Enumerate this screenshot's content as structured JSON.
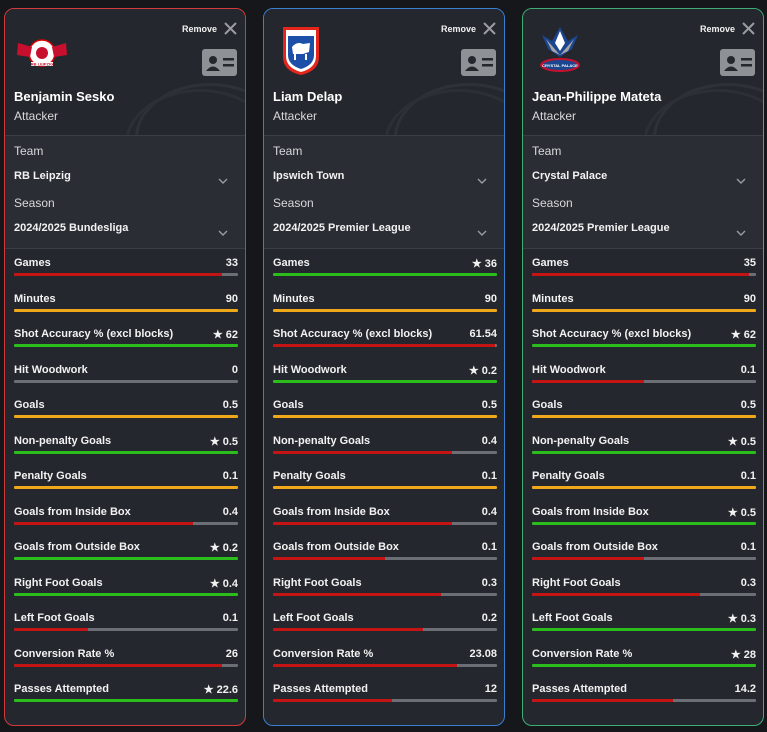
{
  "ui": {
    "remove_label": "Remove",
    "team_label": "Team",
    "season_label": "Season"
  },
  "colors": {
    "green": "#2bbd1c",
    "orange": "#f0a81a",
    "red": "#c41414",
    "gray": "#6b6e74"
  },
  "players": [
    {
      "name": "Benjamin Sesko",
      "role": "Attacker",
      "team": "RB Leipzig",
      "season": "2024/2025 Bundesliga",
      "border_color": "#d23b3b",
      "logo": "rb-leipzig-logo",
      "stats": [
        {
          "name": "Games",
          "value": "33",
          "star": false,
          "fill": 0.93,
          "color": "red"
        },
        {
          "name": "Minutes",
          "value": "90",
          "star": false,
          "fill": 1.0,
          "color": "orange"
        },
        {
          "name": "Shot Accuracy % (excl blocks)",
          "value": "62",
          "star": true,
          "fill": 1.0,
          "color": "green"
        },
        {
          "name": "Hit Woodwork",
          "value": "0",
          "star": false,
          "fill": 0.0,
          "color": "gray"
        },
        {
          "name": "Goals",
          "value": "0.5",
          "star": false,
          "fill": 1.0,
          "color": "orange"
        },
        {
          "name": "Non-penalty Goals",
          "value": "0.5",
          "star": true,
          "fill": 1.0,
          "color": "green"
        },
        {
          "name": "Penalty Goals",
          "value": "0.1",
          "star": false,
          "fill": 1.0,
          "color": "orange"
        },
        {
          "name": "Goals from Inside Box",
          "value": "0.4",
          "star": false,
          "fill": 0.8,
          "color": "red"
        },
        {
          "name": "Goals from Outside Box",
          "value": "0.2",
          "star": true,
          "fill": 1.0,
          "color": "green"
        },
        {
          "name": "Right Foot Goals",
          "value": "0.4",
          "star": true,
          "fill": 1.0,
          "color": "green"
        },
        {
          "name": "Left Foot Goals",
          "value": "0.1",
          "star": false,
          "fill": 0.33,
          "color": "red"
        },
        {
          "name": "Conversion Rate %",
          "value": "26",
          "star": false,
          "fill": 0.93,
          "color": "red"
        },
        {
          "name": "Passes Attempted",
          "value": "22.6",
          "star": true,
          "fill": 1.0,
          "color": "green"
        }
      ]
    },
    {
      "name": "Liam Delap",
      "role": "Attacker",
      "team": "Ipswich Town",
      "season": "2024/2025 Premier League",
      "border_color": "#3b7fd2",
      "logo": "ipswich-town-logo",
      "stats": [
        {
          "name": "Games",
          "value": "36",
          "star": true,
          "fill": 1.0,
          "color": "green"
        },
        {
          "name": "Minutes",
          "value": "90",
          "star": false,
          "fill": 1.0,
          "color": "orange"
        },
        {
          "name": "Shot Accuracy % (excl blocks)",
          "value": "61.54",
          "star": false,
          "fill": 0.99,
          "color": "red"
        },
        {
          "name": "Hit Woodwork",
          "value": "0.2",
          "star": true,
          "fill": 1.0,
          "color": "green"
        },
        {
          "name": "Goals",
          "value": "0.5",
          "star": false,
          "fill": 1.0,
          "color": "orange"
        },
        {
          "name": "Non-penalty Goals",
          "value": "0.4",
          "star": false,
          "fill": 0.8,
          "color": "red"
        },
        {
          "name": "Penalty Goals",
          "value": "0.1",
          "star": false,
          "fill": 1.0,
          "color": "orange"
        },
        {
          "name": "Goals from Inside Box",
          "value": "0.4",
          "star": false,
          "fill": 0.8,
          "color": "red"
        },
        {
          "name": "Goals from Outside Box",
          "value": "0.1",
          "star": false,
          "fill": 0.5,
          "color": "red"
        },
        {
          "name": "Right Foot Goals",
          "value": "0.3",
          "star": false,
          "fill": 0.75,
          "color": "red"
        },
        {
          "name": "Left Foot Goals",
          "value": "0.2",
          "star": false,
          "fill": 0.67,
          "color": "red"
        },
        {
          "name": "Conversion Rate %",
          "value": "23.08",
          "star": false,
          "fill": 0.82,
          "color": "red"
        },
        {
          "name": "Passes Attempted",
          "value": "12",
          "star": false,
          "fill": 0.53,
          "color": "red"
        }
      ]
    },
    {
      "name": "Jean-Philippe Mateta",
      "role": "Attacker",
      "team": "Crystal Palace",
      "season": "2024/2025 Premier League",
      "border_color": "#3fae74",
      "logo": "crystal-palace-logo",
      "stats": [
        {
          "name": "Games",
          "value": "35",
          "star": false,
          "fill": 0.97,
          "color": "red"
        },
        {
          "name": "Minutes",
          "value": "90",
          "star": false,
          "fill": 1.0,
          "color": "orange"
        },
        {
          "name": "Shot Accuracy % (excl blocks)",
          "value": "62",
          "star": true,
          "fill": 1.0,
          "color": "green"
        },
        {
          "name": "Hit Woodwork",
          "value": "0.1",
          "star": false,
          "fill": 0.5,
          "color": "red"
        },
        {
          "name": "Goals",
          "value": "0.5",
          "star": false,
          "fill": 1.0,
          "color": "orange"
        },
        {
          "name": "Non-penalty Goals",
          "value": "0.5",
          "star": true,
          "fill": 1.0,
          "color": "green"
        },
        {
          "name": "Penalty Goals",
          "value": "0.1",
          "star": false,
          "fill": 1.0,
          "color": "orange"
        },
        {
          "name": "Goals from Inside Box",
          "value": "0.5",
          "star": true,
          "fill": 1.0,
          "color": "green"
        },
        {
          "name": "Goals from Outside Box",
          "value": "0.1",
          "star": false,
          "fill": 0.5,
          "color": "red"
        },
        {
          "name": "Right Foot Goals",
          "value": "0.3",
          "star": false,
          "fill": 0.75,
          "color": "red"
        },
        {
          "name": "Left Foot Goals",
          "value": "0.3",
          "star": true,
          "fill": 1.0,
          "color": "green"
        },
        {
          "name": "Conversion Rate %",
          "value": "28",
          "star": true,
          "fill": 1.0,
          "color": "green"
        },
        {
          "name": "Passes Attempted",
          "value": "14.2",
          "star": false,
          "fill": 0.63,
          "color": "red"
        }
      ]
    }
  ]
}
